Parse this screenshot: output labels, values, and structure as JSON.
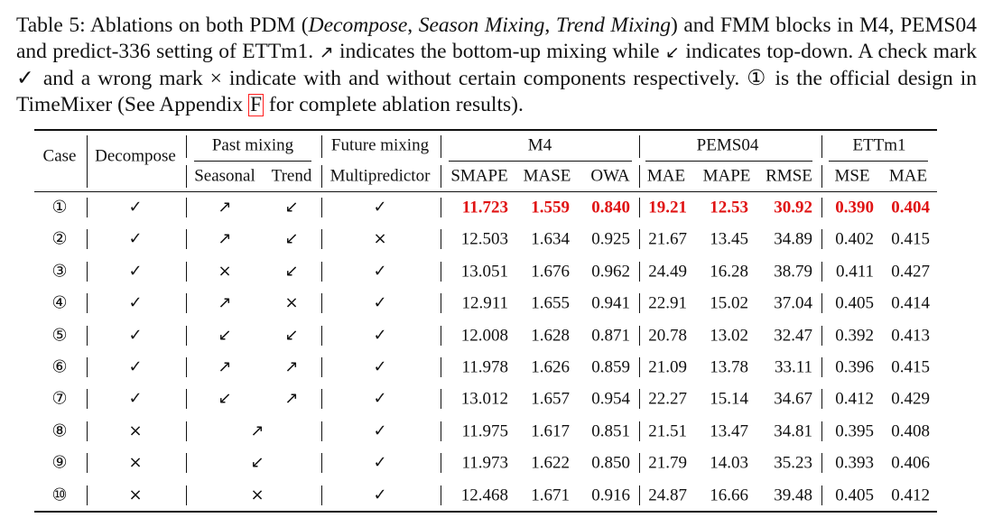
{
  "caption": {
    "p1": "Table 5: Ablations on both PDM (",
    "decompose": "Decompose",
    "comma1": ", ",
    "season": "Season Mixing",
    "comma2": ", ",
    "trend": "Trend Mixing",
    "p2": ") and FMM blocks in M4, PEMS04 and predict-336 setting of ETTm1.",
    "up_symbol": "↗",
    "p3": " indicates the bottom-up mixing while ",
    "down_symbol": "↙",
    "p4": " indicates top-down. A check mark ✓ and a wrong mark × indicate with and without certain components respectively. ① is the official design in TimeMixer (See Appendix ",
    "ref": "F",
    "p5": " for complete ablation results)."
  },
  "header": {
    "case": "Case",
    "decompose": "Decompose",
    "past_mixing": "Past mixing",
    "future_mixing": "Future mixing",
    "m4": "M4",
    "pems04": "PEMS04",
    "ettm1": "ETTm1",
    "seasonal": "Seasonal",
    "trend": "Trend",
    "multipredictor": "Multipredictor",
    "smape": "SMAPE",
    "mase": "MASE",
    "owa": "OWA",
    "mae_p": "MAE",
    "mape": "MAPE",
    "rmse": "RMSE",
    "mse": "MSE",
    "mae_e": "MAE"
  },
  "rows": [
    {
      "case": "①",
      "decompose": "✓",
      "seasonal": "↗",
      "trend": "↙",
      "merged": "",
      "multi": "✓",
      "smape": "11.723",
      "mase": "1.559",
      "owa": "0.840",
      "mae_p": "19.21",
      "mape": "12.53",
      "rmse": "30.92",
      "mse": "0.390",
      "mae_e": "0.404",
      "best": true
    },
    {
      "case": "②",
      "decompose": "✓",
      "seasonal": "↗",
      "trend": "↙",
      "merged": "",
      "multi": "×",
      "smape": "12.503",
      "mase": "1.634",
      "owa": "0.925",
      "mae_p": "21.67",
      "mape": "13.45",
      "rmse": "34.89",
      "mse": "0.402",
      "mae_e": "0.415",
      "best": false
    },
    {
      "case": "③",
      "decompose": "✓",
      "seasonal": "×",
      "trend": "↙",
      "merged": "",
      "multi": "✓",
      "smape": "13.051",
      "mase": "1.676",
      "owa": "0.962",
      "mae_p": "24.49",
      "mape": "16.28",
      "rmse": "38.79",
      "mse": "0.411",
      "mae_e": "0.427",
      "best": false
    },
    {
      "case": "④",
      "decompose": "✓",
      "seasonal": "↗",
      "trend": "×",
      "merged": "",
      "multi": "✓",
      "smape": "12.911",
      "mase": "1.655",
      "owa": "0.941",
      "mae_p": "22.91",
      "mape": "15.02",
      "rmse": "37.04",
      "mse": "0.405",
      "mae_e": "0.414",
      "best": false
    },
    {
      "case": "⑤",
      "decompose": "✓",
      "seasonal": "↙",
      "trend": "↙",
      "merged": "",
      "multi": "✓",
      "smape": "12.008",
      "mase": "1.628",
      "owa": "0.871",
      "mae_p": "20.78",
      "mape": "13.02",
      "rmse": "32.47",
      "mse": "0.392",
      "mae_e": "0.413",
      "best": false
    },
    {
      "case": "⑥",
      "decompose": "✓",
      "seasonal": "↗",
      "trend": "↗",
      "merged": "",
      "multi": "✓",
      "smape": "11.978",
      "mase": "1.626",
      "owa": "0.859",
      "mae_p": "21.09",
      "mape": "13.78",
      "rmse": "33.11",
      "mse": "0.396",
      "mae_e": "0.415",
      "best": false
    },
    {
      "case": "⑦",
      "decompose": "✓",
      "seasonal": "↙",
      "trend": "↗",
      "merged": "",
      "multi": "✓",
      "smape": "13.012",
      "mase": "1.657",
      "owa": "0.954",
      "mae_p": "22.27",
      "mape": "15.14",
      "rmse": "34.67",
      "mse": "0.412",
      "mae_e": "0.429",
      "best": false
    },
    {
      "case": "⑧",
      "decompose": "×",
      "seasonal": "",
      "trend": "",
      "merged": "↗",
      "multi": "✓",
      "smape": "11.975",
      "mase": "1.617",
      "owa": "0.851",
      "mae_p": "21.51",
      "mape": "13.47",
      "rmse": "34.81",
      "mse": "0.395",
      "mae_e": "0.408",
      "best": false
    },
    {
      "case": "⑨",
      "decompose": "×",
      "seasonal": "",
      "trend": "",
      "merged": "↙",
      "multi": "✓",
      "smape": "11.973",
      "mase": "1.622",
      "owa": "0.850",
      "mae_p": "21.79",
      "mape": "14.03",
      "rmse": "35.23",
      "mse": "0.393",
      "mae_e": "0.406",
      "best": false
    },
    {
      "case": "⑩",
      "decompose": "×",
      "seasonal": "",
      "trend": "",
      "merged": "×",
      "multi": "✓",
      "smape": "12.468",
      "mase": "1.671",
      "owa": "0.916",
      "mae_p": "24.87",
      "mape": "16.66",
      "rmse": "39.48",
      "mse": "0.405",
      "mae_e": "0.412",
      "best": false
    }
  ]
}
